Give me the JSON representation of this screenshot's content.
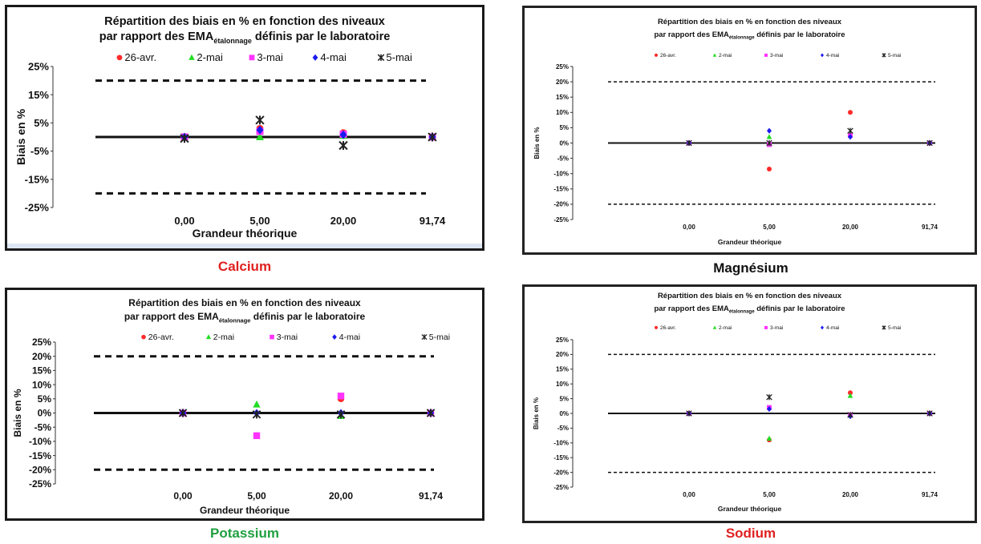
{
  "captions": {
    "calcium": "Calcium",
    "magnesium": "Magnésium",
    "potassium": "Potassium",
    "sodium": "Sodium"
  },
  "colors": {
    "calcium_caption": "#e02020",
    "magnesium_caption": "#111111",
    "potassium_caption": "#20a040",
    "sodium_caption": "#e02020",
    "series_26_avr": "#ff2a2a",
    "series_2_mai": "#22dd22",
    "series_3_mai": "#ff33ff",
    "series_4_mai": "#1a1aee",
    "series_5_mai": "#222222"
  },
  "chart_data": [
    {
      "type": "scatter",
      "panel": "calcium",
      "title_line1": "Répartition des biais en % en fonction des niveaux",
      "title_line2_prefix": "par rapport des EMA",
      "title_line2_sub": "étalonnage",
      "title_line2_suffix": " définis par le laboratoire",
      "xlabel": "Grandeur théorique",
      "ylabel": "Biais en %",
      "categories": [
        "0,00",
        "5,00",
        "20,00",
        "91,74"
      ],
      "ytick_labels": [
        "25%",
        "15%",
        "5%",
        "-5%",
        "-15%",
        "-25%"
      ],
      "ytick_values": [
        25,
        15,
        5,
        -5,
        -15,
        -25
      ],
      "ylim": [
        -25,
        25
      ],
      "zero_line": 0,
      "limit_lines": [
        20,
        -20
      ],
      "series": [
        {
          "name": "26-avr.",
          "marker": "circle",
          "values": [
            0,
            3,
            1.5,
            0
          ]
        },
        {
          "name": "2-mai",
          "marker": "triangle",
          "values": [
            0,
            0,
            0.5,
            0
          ]
        },
        {
          "name": "3-mai",
          "marker": "square",
          "values": [
            0,
            2,
            1,
            0
          ]
        },
        {
          "name": "4-mai",
          "marker": "diamond",
          "values": [
            0,
            2.5,
            0.8,
            0
          ]
        },
        {
          "name": "5-mai",
          "marker": "star",
          "values": [
            -0.5,
            6,
            -3,
            0
          ]
        }
      ]
    },
    {
      "type": "scatter",
      "panel": "magnesium",
      "title_line1": "Répartition des biais en % en fonction des niveaux",
      "title_line2_prefix": "par rapport des EMA",
      "title_line2_sub": "étalonnage",
      "title_line2_suffix": " définis par le laboratoire",
      "xlabel": "Grandeur théorique",
      "ylabel": "Biais en %",
      "categories": [
        "0,00",
        "5,00",
        "20,00",
        "91,74"
      ],
      "ytick_labels": [
        "25%",
        "20%",
        "15%",
        "10%",
        "5%",
        "0%",
        "-5%",
        "-10%",
        "-15%",
        "-20%",
        "-25%"
      ],
      "ytick_values": [
        25,
        20,
        15,
        10,
        5,
        0,
        -5,
        -10,
        -15,
        -20,
        -25
      ],
      "ylim": [
        -25,
        25
      ],
      "zero_line": 0,
      "limit_lines": [
        20,
        -20
      ],
      "series": [
        {
          "name": "26-avr.",
          "marker": "circle",
          "values": [
            0,
            -8.5,
            10,
            0
          ]
        },
        {
          "name": "2-mai",
          "marker": "triangle",
          "values": [
            0,
            2,
            3,
            0
          ]
        },
        {
          "name": "3-mai",
          "marker": "square",
          "values": [
            0,
            -0.5,
            2.5,
            0
          ]
        },
        {
          "name": "4-mai",
          "marker": "diamond",
          "values": [
            0,
            4,
            2,
            0
          ]
        },
        {
          "name": "5-mai",
          "marker": "star",
          "values": [
            0,
            0,
            4,
            0
          ]
        }
      ]
    },
    {
      "type": "scatter",
      "panel": "potassium",
      "title_line1": "Répartition des biais en % en fonction des niveaux",
      "title_line2_prefix": "par rapport des EMA",
      "title_line2_sub": "étalonnage",
      "title_line2_suffix": " définis par le laboratoire",
      "xlabel": "Grandeur théorique",
      "ylabel": "Biais en %",
      "categories": [
        "0,00",
        "5,00",
        "20,00",
        "91,74"
      ],
      "ytick_labels": [
        "25%",
        "20%",
        "15%",
        "10%",
        "5%",
        "0%",
        "-5%",
        "-10%",
        "-15%",
        "-20%",
        "-25%"
      ],
      "ytick_values": [
        25,
        20,
        15,
        10,
        5,
        0,
        -5,
        -10,
        -15,
        -20,
        -25
      ],
      "ylim": [
        -25,
        25
      ],
      "zero_line": 0,
      "limit_lines": [
        20,
        -20
      ],
      "series": [
        {
          "name": "26-avr.",
          "marker": "circle",
          "values": [
            0,
            -8,
            5,
            0
          ]
        },
        {
          "name": "2-mai",
          "marker": "triangle",
          "values": [
            0,
            3,
            -1,
            0
          ]
        },
        {
          "name": "3-mai",
          "marker": "square",
          "values": [
            0,
            -8,
            6,
            0
          ]
        },
        {
          "name": "4-mai",
          "marker": "diamond",
          "values": [
            0,
            0,
            0,
            0
          ]
        },
        {
          "name": "5-mai",
          "marker": "star",
          "values": [
            0,
            -0.5,
            -0.5,
            0
          ]
        }
      ]
    },
    {
      "type": "scatter",
      "panel": "sodium",
      "title_line1": "Répartition des biais en % en fonction des niveaux",
      "title_line2_prefix": "par rapport des EMA",
      "title_line2_sub": "étalonnage",
      "title_line2_suffix": " définis par le laboratoire",
      "xlabel": "Grandeur théorique",
      "ylabel": "Biais en %",
      "categories": [
        "0,00",
        "5,00",
        "20,00",
        "91,74"
      ],
      "ytick_labels": [
        "25%",
        "20%",
        "15%",
        "10%",
        "5%",
        "0%",
        "-5%",
        "-10%",
        "-15%",
        "-20%",
        "-25%"
      ],
      "ytick_values": [
        25,
        20,
        15,
        10,
        5,
        0,
        -5,
        -10,
        -15,
        -20,
        -25
      ],
      "ylim": [
        -25,
        25
      ],
      "zero_line": 0,
      "limit_lines": [
        20,
        -20
      ],
      "series": [
        {
          "name": "26-avr.",
          "marker": "circle",
          "values": [
            0,
            -9,
            7,
            0
          ]
        },
        {
          "name": "2-mai",
          "marker": "triangle",
          "values": [
            0,
            -8.5,
            6,
            0
          ]
        },
        {
          "name": "3-mai",
          "marker": "square",
          "values": [
            0,
            2,
            -0.5,
            0
          ]
        },
        {
          "name": "4-mai",
          "marker": "diamond",
          "values": [
            0,
            1.5,
            -1,
            0
          ]
        },
        {
          "name": "5-mai",
          "marker": "star",
          "values": [
            0,
            5.5,
            -0.5,
            0
          ]
        }
      ]
    }
  ]
}
